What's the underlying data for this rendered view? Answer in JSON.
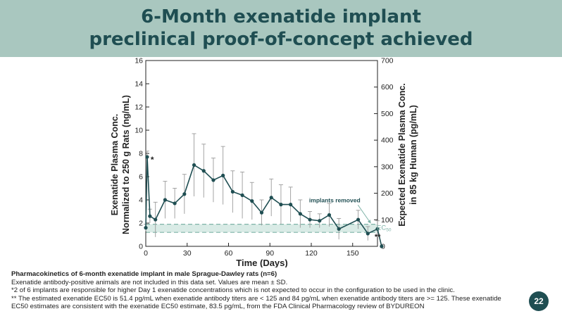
{
  "slide": {
    "title_line1": "6-Month exenatide implant",
    "title_line2": "preclinical proof-of-concept achieved",
    "page_number": "22"
  },
  "caption": {
    "title": "Pharmacokinetics of 6-month exenatide implant in male Sprague-Dawley rats (n=6)",
    "line1": "Exenatide antibody-positive animals are not included in this data set. Values are mean ± SD.",
    "line2": "*2 of 6 implants are responsible for higher Day 1 exenatide concentrations which is not expected to occur in the configuration to be used in the clinic.",
    "line3": "** The estimated exenatide EC50 is 51.4 pg/mL when exenatide antibody titers are < 125 and 84 pg/mL when exenatide antibody titers are >= 125. These exenatide EC50 estimates are consistent with the exenatide EC50 estimate, 83.5 pg/mL, from the FDA Clinical Pharmacology review of BYDUREON"
  },
  "chart_data": {
    "type": "line",
    "xlabel": "Time (Days)",
    "ylabel_line1": "Exenatide Plasma Conc.",
    "ylabel_line2": "Normalized to 250 g Rats (ng/mL)",
    "y2label_line1": "Expected Exenatide Plasma Conc.",
    "y2label_line2": "in 85 kg Human (pg/mL)",
    "xlim": [
      0,
      168
    ],
    "ylim": [
      0,
      16
    ],
    "y2lim": [
      0,
      700
    ],
    "x_ticks": [
      "0",
      "30",
      "60",
      "90",
      "120",
      "150"
    ],
    "x_tick_values": [
      0,
      30,
      60,
      90,
      120,
      150
    ],
    "y_ticks": [
      "0",
      "2",
      "4",
      "6",
      "8",
      "10",
      "12",
      "14",
      "16"
    ],
    "y_tick_values": [
      0,
      2,
      4,
      6,
      8,
      10,
      12,
      14,
      16
    ],
    "y2_ticks": [
      "0",
      "100",
      "200",
      "300",
      "400",
      "500",
      "600",
      "700"
    ],
    "y2_tick_values": [
      0,
      100,
      200,
      300,
      400,
      500,
      600,
      700
    ],
    "colors": {
      "line": "#1f4e52",
      "error_bar": "#9a9a9a",
      "band": "#d9ebe6",
      "band_line": "#7fb3a8"
    },
    "series": [
      {
        "x": [
          0,
          1,
          3,
          7,
          14,
          21,
          28,
          35,
          42,
          49,
          56,
          63,
          70,
          77,
          84,
          91,
          98,
          105,
          112,
          119,
          126,
          133,
          140,
          154,
          161,
          168
        ],
        "y": [
          1.6,
          7.7,
          2.6,
          2.3,
          4.0,
          3.7,
          4.5,
          7.0,
          6.5,
          5.7,
          6.1,
          4.7,
          4.4,
          3.9,
          2.9,
          4.2,
          3.6,
          3.6,
          2.8,
          2.3,
          2.2,
          2.7,
          1.5,
          2.3,
          1.1,
          1.5
        ],
        "err": [
          0.3,
          0.5,
          0.6,
          1.5,
          1.6,
          1.3,
          1.7,
          2.7,
          2.3,
          1.9,
          2.5,
          1.8,
          2.0,
          1.6,
          1.1,
          1.6,
          1.7,
          1.5,
          1.2,
          0.7,
          0.6,
          1.0,
          0.9,
          0.8,
          0.6,
          0.7
        ]
      }
    ],
    "drop_points": {
      "x": [
        168,
        171
      ],
      "y": [
        1.5,
        0
      ]
    },
    "ec50_band": {
      "y_low": 1.2,
      "y_high": 1.9,
      "label": "EC",
      "label_sub": "50"
    },
    "annotations": [
      {
        "text": "*",
        "x": 2,
        "y": 7.7
      },
      {
        "text": "implants removed",
        "x": 137,
        "y": 3.8
      },
      {
        "text": "**",
        "x": 171,
        "y": 1.2
      }
    ]
  }
}
